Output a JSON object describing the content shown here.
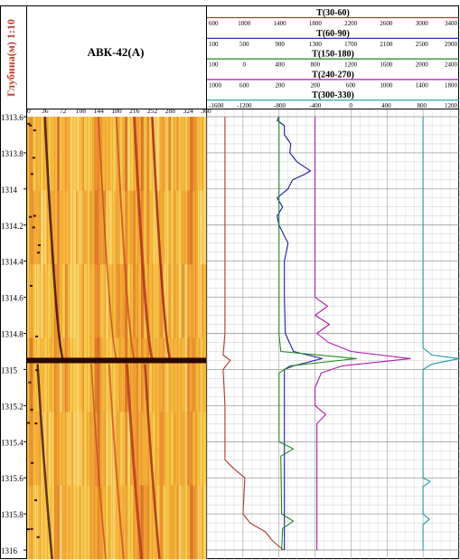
{
  "chart_data": {
    "type": "line",
    "title": "АВК-42(А)",
    "depth_axis": {
      "label": "Глубина(м) 1:10",
      "ticks": [
        "1313.6",
        "1313.8",
        "1314",
        "1314.2",
        "1314.4",
        "1314.6",
        "1314.8",
        "1315",
        "1315.2",
        "1315.4",
        "1315.6",
        "1315.8",
        "1316"
      ],
      "range": [
        1313.6,
        1316.0
      ]
    },
    "image_track": {
      "type": "heatmap",
      "azimuth_ticks": [
        "0",
        "36",
        "72",
        "108",
        "144",
        "180",
        "216",
        "252",
        "288",
        "324",
        "360"
      ],
      "azimuth_range": [
        0,
        360
      ]
    },
    "curve_headers": [
      {
        "name": "T(30-60)",
        "ticks": [
          "600",
          "1000",
          "1400",
          "1800",
          "2200",
          "2600",
          "3000",
          "3400"
        ],
        "range": [
          600,
          3400
        ],
        "color": "#b03a2e"
      },
      {
        "name": "T(60-90)",
        "ticks": [
          "100",
          "500",
          "900",
          "1300",
          "1700",
          "2100",
          "2500",
          "2900"
        ],
        "range": [
          100,
          2900
        ],
        "color": "#1a1aa8"
      },
      {
        "name": "T(150-180)",
        "ticks": [
          "100",
          "0",
          "400",
          "800",
          "1200",
          "1600",
          "2000",
          "2400"
        ],
        "range": [
          -400,
          2400
        ],
        "color": "#1f8a1f"
      },
      {
        "name": "T(240-270)",
        "ticks": [
          "1000",
          "600",
          "200",
          "200",
          "600",
          "1000",
          "1400",
          "1800"
        ],
        "range": [
          -1000,
          1800
        ],
        "color": "#b01ab0"
      },
      {
        "name": "T(300-330)",
        "ticks": [
          "-1600",
          "-1200",
          "-800",
          "-400",
          "0",
          "400",
          "800",
          "1200"
        ],
        "range": [
          -1600,
          1200
        ],
        "color": "#1a9aa8"
      }
    ],
    "series": [
      {
        "name": "T(30-60)",
        "color": "#b03a2e",
        "depth": [
          1313.6,
          1314.4,
          1314.8,
          1314.92,
          1314.95,
          1315.0,
          1315.2,
          1315.5,
          1315.55,
          1315.6,
          1315.7,
          1315.8,
          1315.85,
          1315.9,
          1315.95,
          1316.0
        ],
        "values": [
          800,
          800,
          800,
          780,
          860,
          780,
          800,
          800,
          900,
          1020,
          1010,
          1000,
          1080,
          1250,
          1330,
          1450
        ]
      },
      {
        "name": "T(60-90)",
        "color": "#1a1aa8",
        "depth": [
          1313.6,
          1313.62,
          1313.65,
          1313.7,
          1313.75,
          1313.8,
          1313.85,
          1313.9,
          1313.92,
          1313.95,
          1314.0,
          1314.05,
          1314.1,
          1314.15,
          1314.2,
          1314.3,
          1314.4,
          1314.6,
          1314.8,
          1314.9,
          1314.94,
          1314.98,
          1315.0,
          1315.2,
          1315.6,
          1316.0
        ],
        "values": [
          900,
          880,
          960,
          960,
          1030,
          1020,
          1100,
          1250,
          1180,
          1050,
          1000,
          880,
          940,
          880,
          900,
          1000,
          960,
          960,
          970,
          1060,
          1380,
          1060,
          960,
          960,
          960,
          960
        ]
      },
      {
        "name": "T(150-180)",
        "color": "#1f8a1f",
        "depth": [
          1313.6,
          1314.8,
          1314.9,
          1314.94,
          1314.98,
          1315.02,
          1315.4,
          1315.44,
          1315.48,
          1315.8,
          1315.84,
          1315.88,
          1316.0
        ],
        "values": [
          400,
          400,
          420,
          1260,
          520,
          400,
          400,
          560,
          420,
          430,
          560,
          440,
          430
        ]
      },
      {
        "name": "T(240-270)",
        "color": "#b01ab0",
        "depth": [
          1313.6,
          1314.6,
          1314.65,
          1314.7,
          1314.75,
          1314.8,
          1314.85,
          1314.9,
          1314.94,
          1314.98,
          1315.02,
          1315.1,
          1315.2,
          1315.25,
          1315.3,
          1316.0
        ],
        "values": [
          200,
          200,
          340,
          200,
          360,
          220,
          350,
          600,
          1260,
          500,
          270,
          200,
          200,
          320,
          220,
          220
        ]
      },
      {
        "name": "T(300-330)",
        "color": "#1a9aa8",
        "depth": [
          1313.6,
          1314.88,
          1314.92,
          1314.94,
          1314.97,
          1315.0,
          1315.6,
          1315.62,
          1315.65,
          1315.8,
          1315.83,
          1315.86,
          1316.0
        ],
        "values": [
          800,
          800,
          900,
          1200,
          900,
          800,
          800,
          880,
          800,
          800,
          870,
          800,
          800
        ]
      }
    ]
  }
}
